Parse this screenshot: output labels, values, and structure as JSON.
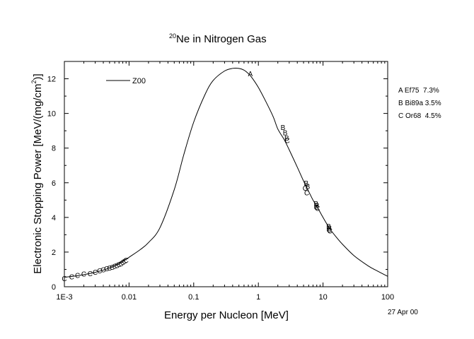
{
  "chart_data": {
    "type": "line",
    "title": {
      "superscript": "20",
      "text": "Ne in Nitrogen Gas"
    },
    "xlabel": "Energy per Nucleon [MeV]",
    "ylabel": {
      "main": "Electronic Stopping Power [MeV/(mg/cm",
      "superscript": "2",
      "close": ")]"
    },
    "x_scale": "log",
    "xlim": [
      0.001,
      100
    ],
    "ylim": [
      0,
      13
    ],
    "x_ticks": [
      {
        "value": 0.001,
        "label": "1E-3"
      },
      {
        "value": 0.01,
        "label": "0.01"
      },
      {
        "value": 0.1,
        "label": "0.1"
      },
      {
        "value": 1,
        "label": "1"
      },
      {
        "value": 10,
        "label": "10"
      },
      {
        "value": 100,
        "label": "100"
      }
    ],
    "y_ticks": [
      0,
      2,
      4,
      6,
      8,
      10,
      12
    ],
    "grid": false,
    "legend": {
      "placement": "top-left",
      "entries": [
        "Z00"
      ]
    },
    "series": [
      {
        "name": "Z00",
        "x": [
          0.001,
          0.0015,
          0.002,
          0.003,
          0.005,
          0.007,
          0.01,
          0.015,
          0.02,
          0.03,
          0.05,
          0.07,
          0.1,
          0.15,
          0.2,
          0.3,
          0.4,
          0.5,
          0.6,
          0.7,
          0.8,
          1.0,
          1.3,
          1.7,
          2.0,
          2.5,
          3.0,
          4.0,
          5.0,
          6.0,
          7.0,
          8.0,
          10.0,
          13.0,
          17.0,
          20.0,
          30.0,
          50.0,
          70.0,
          100.0
        ],
        "y": [
          0.55,
          0.62,
          0.7,
          0.83,
          1.08,
          1.32,
          1.7,
          2.15,
          2.55,
          3.4,
          5.6,
          7.6,
          9.5,
          11.1,
          11.9,
          12.45,
          12.6,
          12.6,
          12.5,
          12.3,
          12.05,
          11.5,
          10.7,
          9.8,
          9.1,
          8.5,
          7.9,
          6.9,
          6.1,
          5.5,
          5.0,
          4.65,
          4.0,
          3.3,
          2.75,
          2.45,
          1.8,
          1.2,
          0.9,
          0.6
        ]
      }
    ],
    "data_sets": [
      {
        "marker": "A",
        "label": "A Ef75  7.3%",
        "points": [
          {
            "x": 0.75,
            "y": 12.3
          }
        ]
      },
      {
        "marker": "B",
        "label": "B Bi89a 3.5%",
        "points": [
          {
            "x": 2.4,
            "y": 9.2
          },
          {
            "x": 2.6,
            "y": 8.9
          },
          {
            "x": 2.75,
            "y": 8.6
          },
          {
            "x": 5.5,
            "y": 6.0
          },
          {
            "x": 5.8,
            "y": 5.8
          },
          {
            "x": 7.8,
            "y": 4.8
          },
          {
            "x": 8.1,
            "y": 4.7
          },
          {
            "x": 12.2,
            "y": 3.5
          },
          {
            "x": 12.6,
            "y": 3.4
          }
        ]
      },
      {
        "marker": "C",
        "label": "C Or68  4.5%",
        "points": [
          {
            "x": 0.001,
            "y": 0.48
          },
          {
            "x": 0.0013,
            "y": 0.6
          },
          {
            "x": 0.0016,
            "y": 0.68
          },
          {
            "x": 0.002,
            "y": 0.75
          },
          {
            "x": 0.0025,
            "y": 0.78
          },
          {
            "x": 0.003,
            "y": 0.85
          },
          {
            "x": 0.0035,
            "y": 0.93
          },
          {
            "x": 0.004,
            "y": 1.0
          },
          {
            "x": 0.0045,
            "y": 1.05
          },
          {
            "x": 0.005,
            "y": 1.1
          },
          {
            "x": 0.0055,
            "y": 1.15
          },
          {
            "x": 0.006,
            "y": 1.2
          },
          {
            "x": 0.0065,
            "y": 1.25
          },
          {
            "x": 0.007,
            "y": 1.3
          },
          {
            "x": 0.0075,
            "y": 1.35
          },
          {
            "x": 0.008,
            "y": 1.42
          },
          {
            "x": 0.0085,
            "y": 1.48
          },
          {
            "x": 0.009,
            "y": 1.55
          },
          {
            "x": 5.3,
            "y": 5.7
          },
          {
            "x": 5.6,
            "y": 5.45
          },
          {
            "x": 7.9,
            "y": 4.6
          },
          {
            "x": 8.2,
            "y": 4.55
          },
          {
            "x": 12.4,
            "y": 3.3
          },
          {
            "x": 12.8,
            "y": 3.25
          },
          {
            "x": 2.8,
            "y": 8.45
          }
        ]
      }
    ],
    "date_note": "27 Apr 00"
  }
}
